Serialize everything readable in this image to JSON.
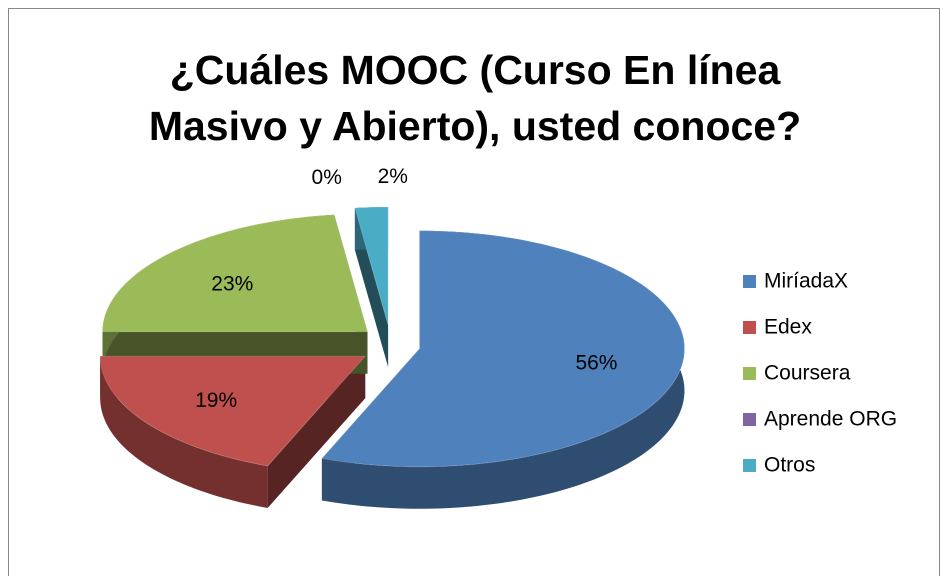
{
  "chart_data": {
    "type": "pie3d",
    "title": "¿Cuáles MOOC (Curso En línea Masivo y Abierto), usted conoce?",
    "categories": [
      "MiríadaX",
      "Edex",
      "Coursera",
      "Aprende ORG",
      "Otros"
    ],
    "values": [
      56,
      19,
      23,
      0,
      2
    ],
    "value_labels": [
      "56%",
      "19%",
      "23%",
      "0%",
      "2%"
    ],
    "colors": [
      "#4f81bd",
      "#c0504d",
      "#9bbb59",
      "#8064a2",
      "#4bacc6"
    ],
    "legend": "right"
  }
}
